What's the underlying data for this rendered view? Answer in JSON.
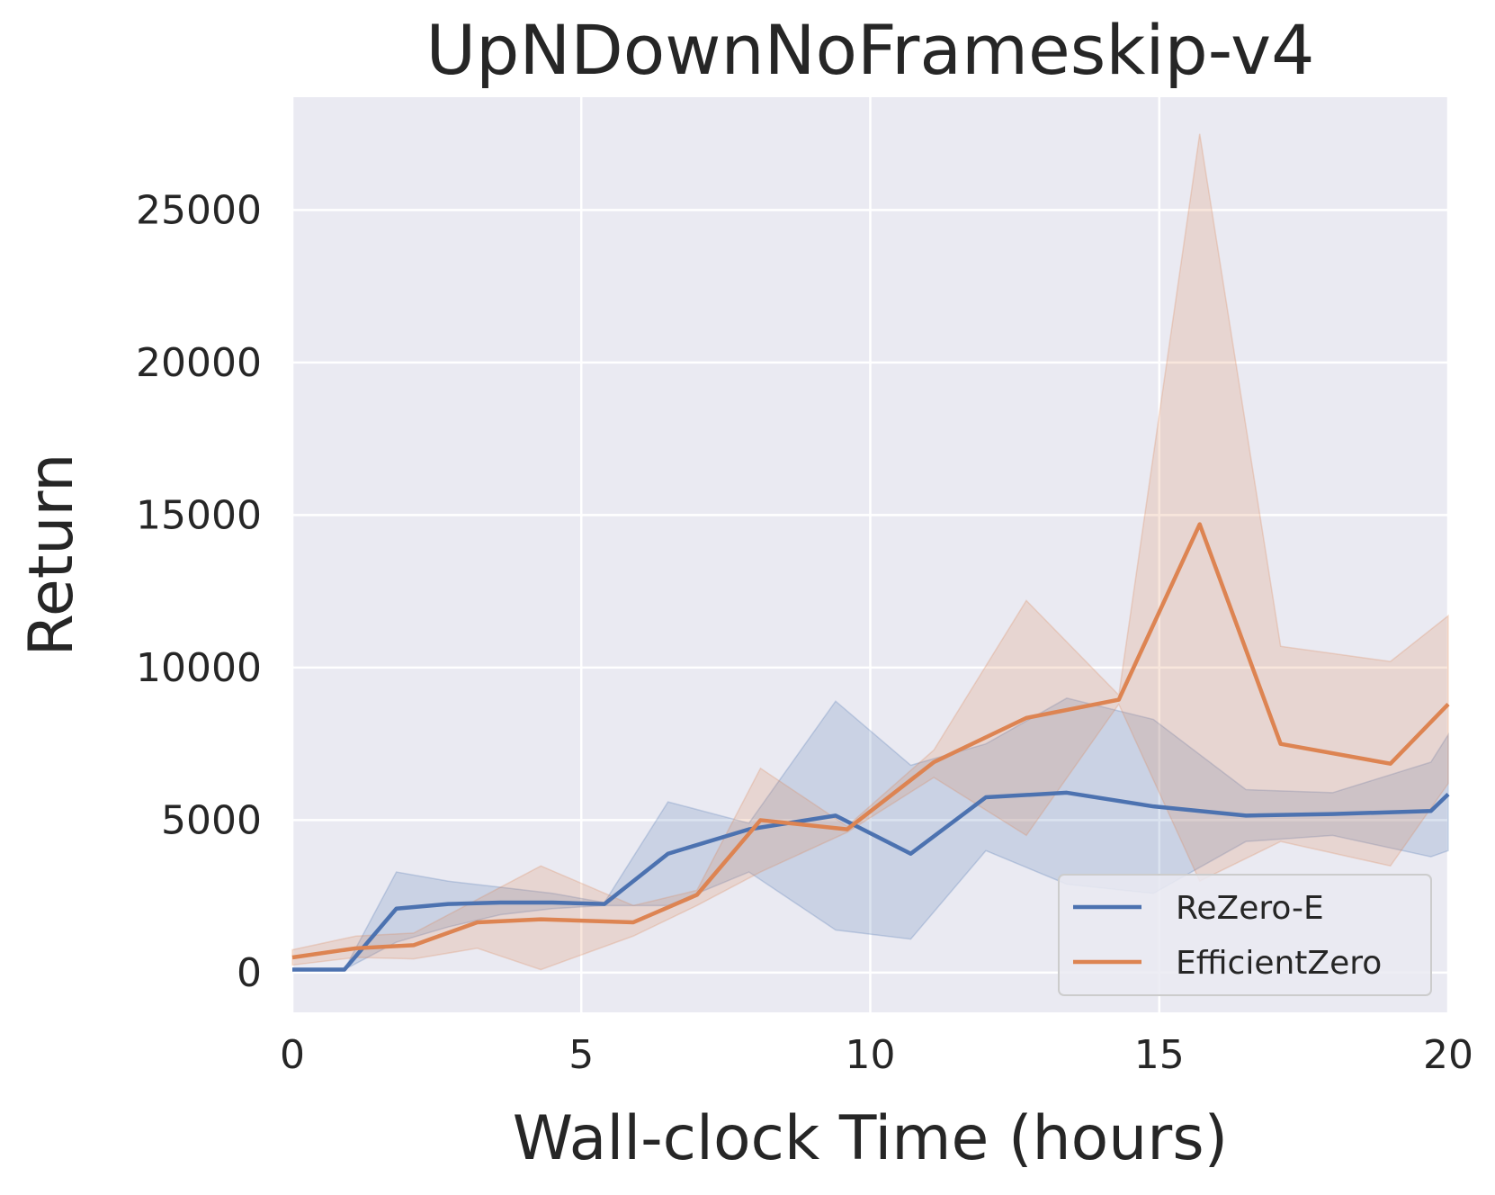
{
  "chart_data": {
    "type": "line",
    "title": "UpNDownNoFrameskip-v4",
    "xlabel": "Wall-clock Time (hours)",
    "ylabel": "Return",
    "xlim": [
      0,
      20
    ],
    "ylim": [
      -1300,
      28700
    ],
    "xticks": [
      0,
      5,
      10,
      15,
      20
    ],
    "xtick_labels": [
      "0",
      "5",
      "10",
      "15",
      "20"
    ],
    "yticks": [
      0,
      5000,
      10000,
      15000,
      20000,
      25000
    ],
    "ytick_labels": [
      "0",
      "5000",
      "10000",
      "15000",
      "20000",
      "25000"
    ],
    "grid": true,
    "legend_position": "lower-right",
    "background": "#eaeaf2",
    "series": [
      {
        "name": "ReZero-E",
        "color": "#4c72b0",
        "x": [
          0,
          0.9,
          1.8,
          2.7,
          3.6,
          4.5,
          5.4,
          6.5,
          7.9,
          9.4,
          10.7,
          12.0,
          13.4,
          14.9,
          16.5,
          18.0,
          19.7,
          20.0
        ],
        "y": [
          100,
          100,
          2100,
          2250,
          2300,
          2300,
          2250,
          3900,
          4700,
          5150,
          3900,
          5750,
          5900,
          5450,
          5150,
          5200,
          5300,
          5850
        ],
        "lower": [
          100,
          100,
          1000,
          1500,
          1900,
          2100,
          2200,
          2200,
          3300,
          1400,
          1100,
          4000,
          2900,
          2600,
          4300,
          4500,
          3800,
          4000
        ],
        "upper": [
          100,
          100,
          3300,
          3000,
          2800,
          2600,
          2300,
          5600,
          4900,
          8900,
          6800,
          7500,
          9000,
          8300,
          6000,
          5900,
          6900,
          7800
        ]
      },
      {
        "name": "EfficientZero",
        "color": "#dd8452",
        "x": [
          0,
          1.1,
          2.1,
          3.2,
          4.3,
          5.9,
          7.0,
          8.1,
          9.6,
          11.1,
          12.7,
          14.3,
          15.7,
          17.1,
          19.0,
          20.0
        ],
        "y": [
          500,
          800,
          900,
          1650,
          1750,
          1650,
          2550,
          5000,
          4700,
          6900,
          8350,
          8950,
          14700,
          7500,
          6850,
          8800
        ],
        "lower": [
          250,
          500,
          450,
          800,
          100,
          1200,
          2200,
          3300,
          4600,
          6400,
          4500,
          8800,
          3000,
          4300,
          3500,
          6200
        ],
        "upper": [
          750,
          1200,
          1300,
          2400,
          3500,
          2200,
          2700,
          6700,
          4800,
          7300,
          12200,
          9100,
          27500,
          10700,
          10200,
          11700
        ]
      }
    ]
  }
}
